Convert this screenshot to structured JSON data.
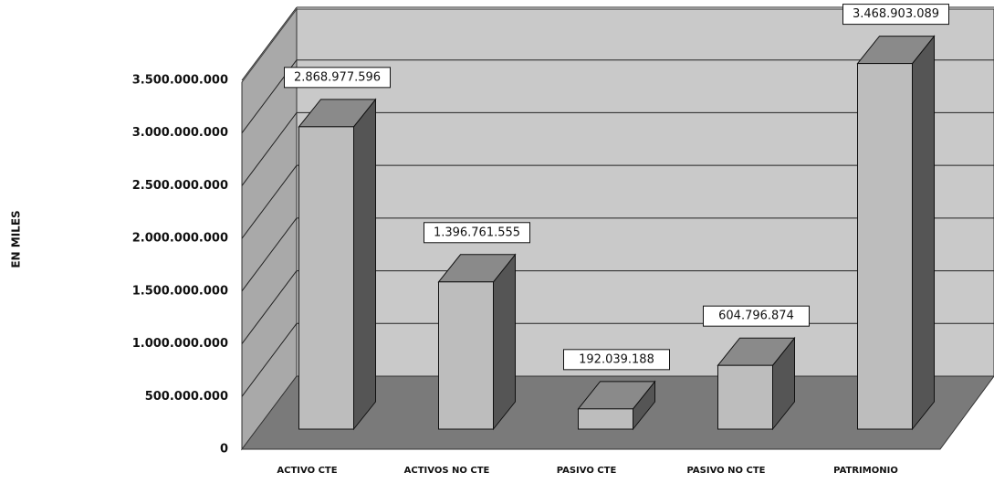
{
  "chart_data": {
    "type": "bar3d",
    "y_label": "EN MILES",
    "categories": [
      "ACTIVO CTE",
      "ACTIVOS NO CTE",
      "PASIVO CTE",
      "PASIVO NO CTE",
      "PATRIMONIO"
    ],
    "values": [
      2868977596,
      1396761555,
      192039188,
      604796874,
      3468903089
    ],
    "value_labels": [
      "2.868.977.596",
      "1.396.761.555",
      "192.039.188",
      "604.796.874",
      "3.468.903.089"
    ],
    "color": "#bdbdbd",
    "ylim": [
      0,
      3500000000
    ],
    "yticks": [
      0,
      {
        "value": 500000000,
        "label": "500.000.000"
      },
      {
        "value": 1000000000,
        "label": "1.000.000.000"
      },
      {
        "value": 1500000000,
        "label": "1.500.000.000"
      },
      {
        "value": 2000000000,
        "label": "2.000.000.000"
      },
      {
        "value": 2500000000,
        "label": "2.500.000.000"
      },
      {
        "value": 3000000000,
        "label": "3.000.000.000"
      },
      {
        "value": 3500000000,
        "label": "3.500.000.000"
      }
    ],
    "grid": true
  }
}
